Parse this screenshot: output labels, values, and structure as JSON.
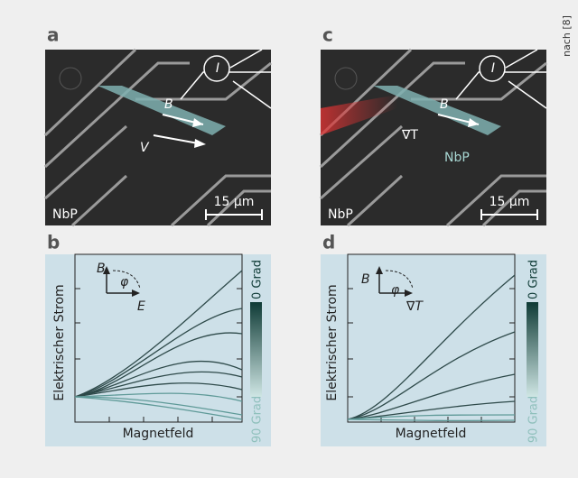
{
  "credit": "nach [8]",
  "panels": [
    {
      "label": "a",
      "sample": "NbP",
      "field": "B",
      "voltage": "V",
      "current": "I",
      "scale": "15 µm"
    },
    {
      "label": "b",
      "y_label": "Elektrischer Strom",
      "x_label": "Magnetfeld",
      "color_top": "0 Grad",
      "color_bottom": "90 Grad",
      "inset": {
        "up": "B",
        "angle": "φ",
        "right": "E"
      }
    },
    {
      "label": "c",
      "sample": "NbP",
      "field": "B",
      "gradient": "∇T",
      "current": "I",
      "bar_label": "NbP",
      "scale": "15 µm"
    },
    {
      "label": "d",
      "y_label": "Elektrischer Strom",
      "x_label": "Magnetfeld",
      "color_top": "0 Grad",
      "color_bottom": "90 Grad",
      "inset": {
        "up": "B",
        "angle": "φ",
        "right": "∇T"
      }
    }
  ]
}
